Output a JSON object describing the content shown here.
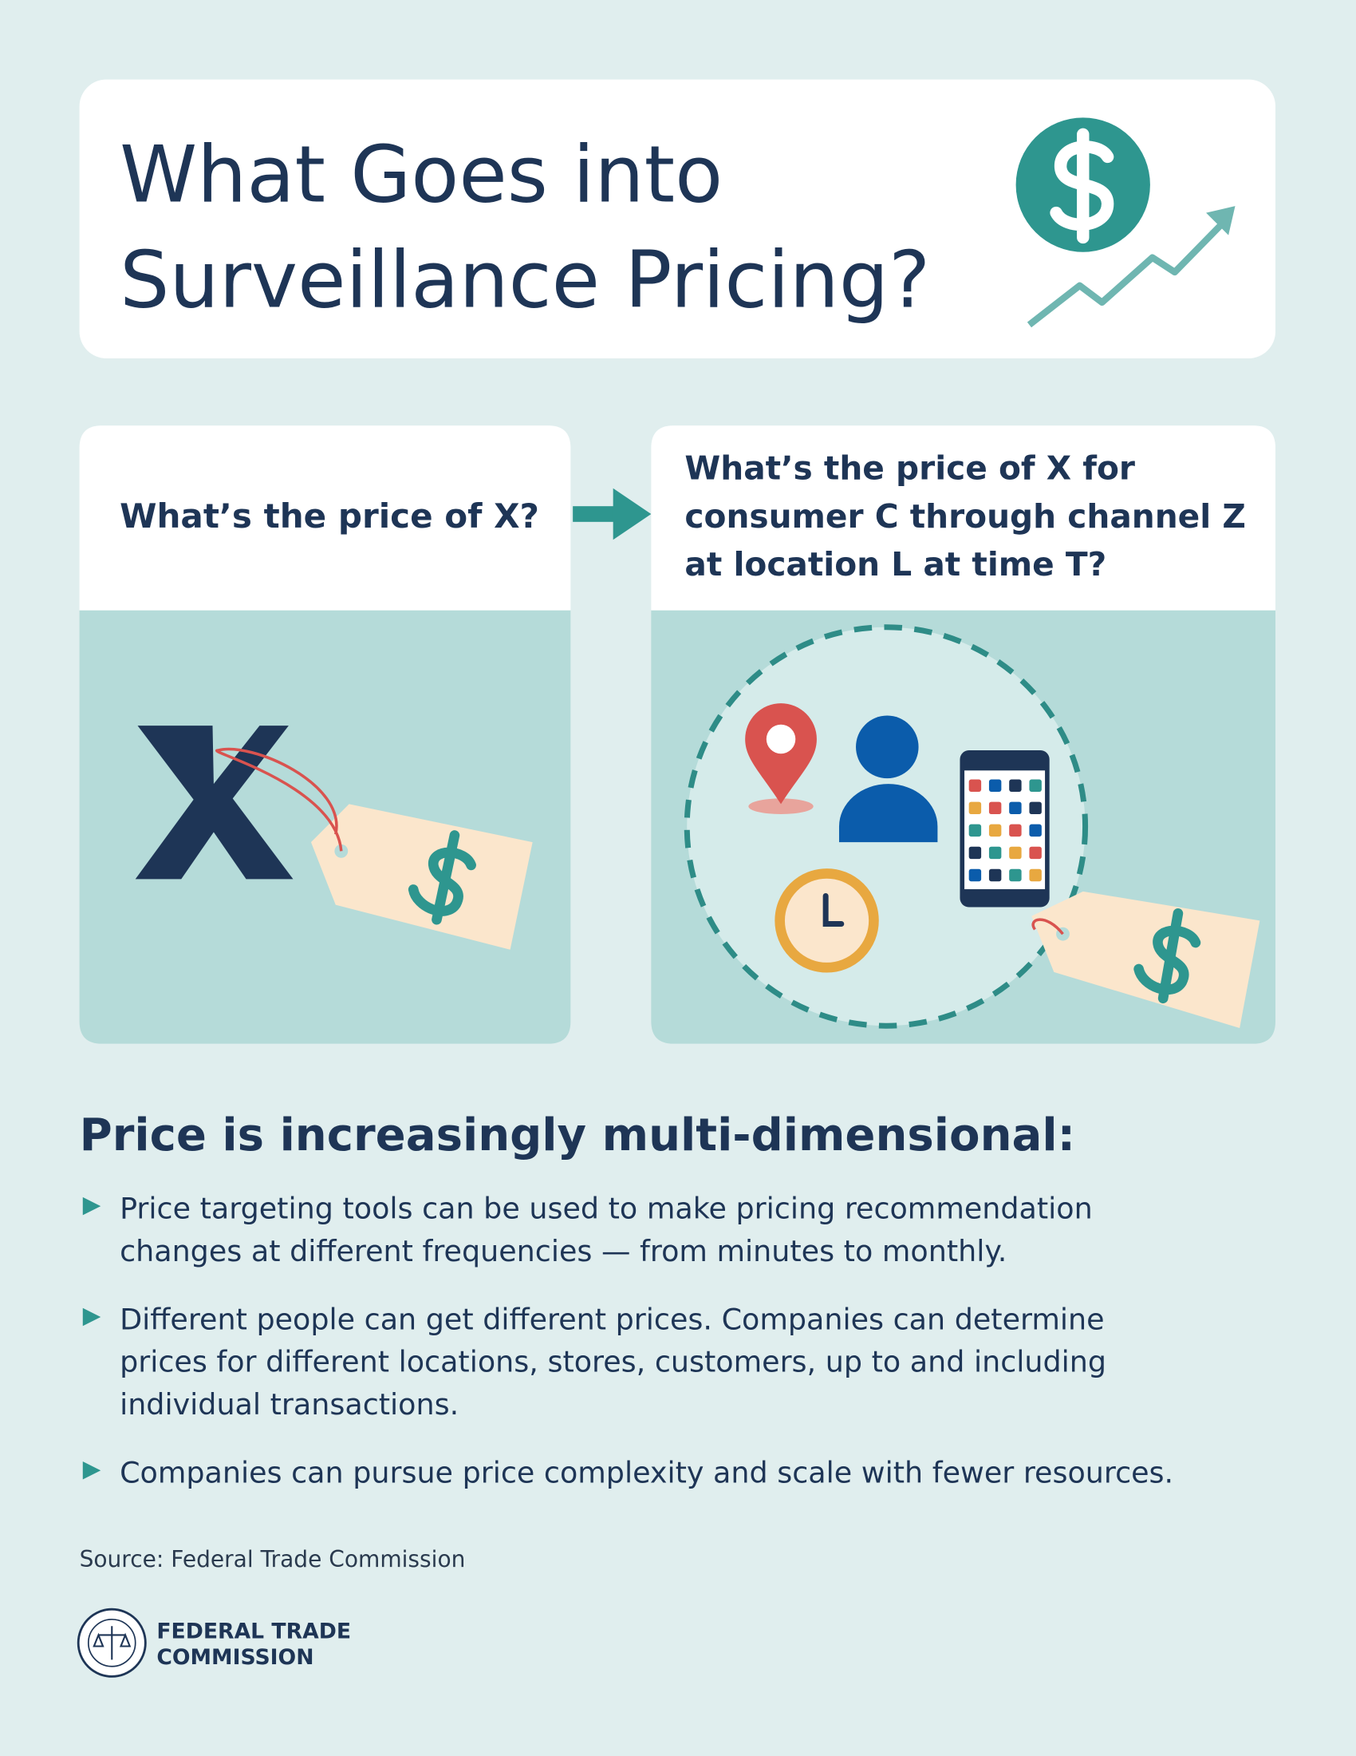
{
  "header": {
    "title_lines": [
      "What Goes into",
      "Surveillance Pricing?"
    ]
  },
  "comparison": {
    "left_question": "What’s the price of X?",
    "right_question_lines": [
      "What’s the price of X for",
      "consumer C through channel Z",
      "at location L at time T?"
    ]
  },
  "section": {
    "heading": "Price is increasingly multi-dimensional:",
    "bullets": [
      [
        "Price targeting tools can be used to make pricing recommendation",
        "changes at different frequencies — from minutes to monthly."
      ],
      [
        "Different people can get different prices. Companies can determine",
        "prices for different locations, stores, customers, up to and including",
        "individual transactions."
      ],
      [
        "Companies can pursue price complexity and scale with fewer resources."
      ]
    ]
  },
  "source": "Source: Federal Trade Commission",
  "logo": {
    "lines": [
      "FEDERAL TRADE",
      "COMMISSION"
    ]
  }
}
